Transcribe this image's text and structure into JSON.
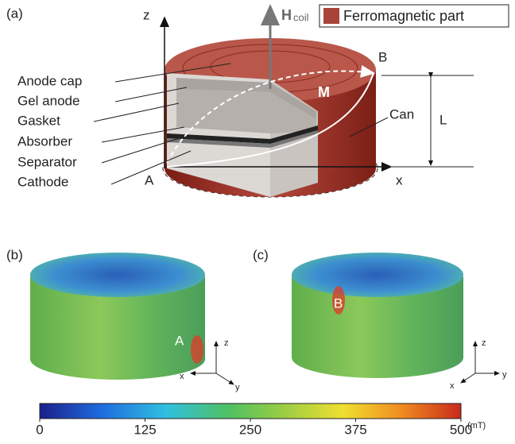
{
  "panel_a": {
    "label": "(a)",
    "axis_z": "z",
    "axis_x": "x",
    "field_symbol": "H",
    "field_subscript": "coil",
    "legend": "Ferromagnetic part",
    "point_a": "A",
    "point_b": "B",
    "magnetization": "M",
    "length": "L",
    "can": "Can",
    "layers": [
      "Anode cap",
      "Gel anode",
      "Gasket",
      "Absorber",
      "Separator",
      "Cathode"
    ]
  },
  "panel_b": {
    "label": "(b)",
    "marker": "A",
    "axis_z": "z",
    "axis_x": "x",
    "axis_y": "y"
  },
  "panel_c": {
    "label": "(c)",
    "marker": "B",
    "axis_z": "z",
    "axis_x": "x",
    "axis_y": "y"
  },
  "colorbar": {
    "lim": [
      0,
      500
    ],
    "ticks": [
      0,
      125,
      250,
      375,
      500
    ],
    "unit": "(mT)"
  }
}
